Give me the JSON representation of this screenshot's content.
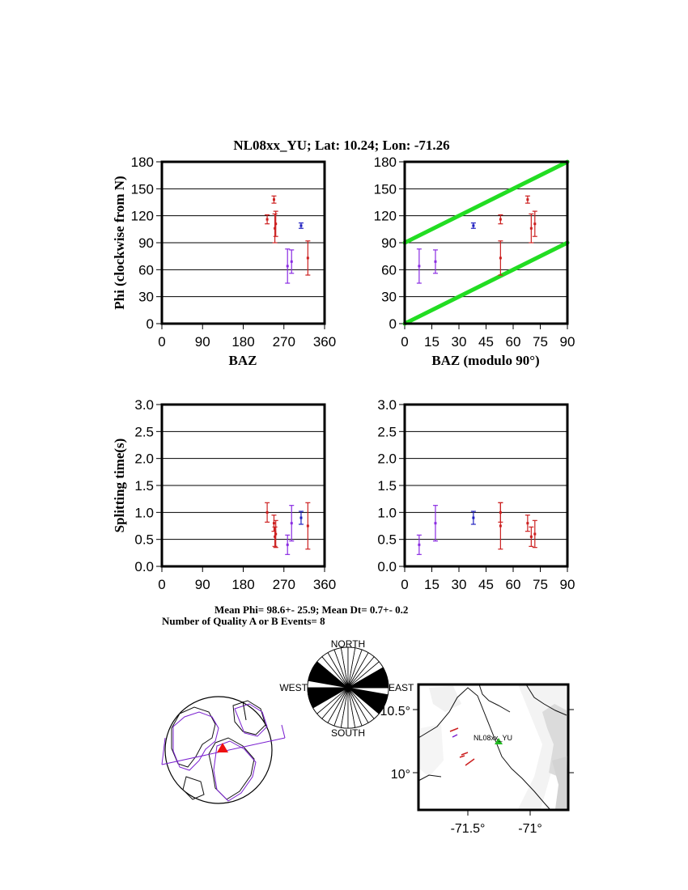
{
  "header": {
    "title": "NL08xx_YU; Lat:  10.24;  Lon:  -71.26"
  },
  "summary": {
    "line1": "Mean Phi= 98.6+- 25.9; Mean Dt=  0.7+-  0.2",
    "line2": "Number of Quality A or B Events=  8"
  },
  "chart_data": [
    {
      "id": "phi_vs_baz",
      "type": "scatter",
      "xlabel": "BAZ",
      "ylabel": "Phi (clockwise from N)",
      "xlim": [
        0,
        360
      ],
      "ylim": [
        0,
        180
      ],
      "xticks": [
        0,
        90,
        180,
        270,
        360
      ],
      "yticks": [
        0,
        30,
        60,
        90,
        120,
        150,
        180
      ],
      "grid": "horizontal",
      "points": [
        {
          "x": 233,
          "y": 116,
          "err": 5,
          "color": "#cc2020"
        },
        {
          "x": 248,
          "y": 138,
          "err": 4,
          "color": "#cc2020"
        },
        {
          "x": 250,
          "y": 106,
          "err": 16,
          "color": "#cc2020"
        },
        {
          "x": 252,
          "y": 111,
          "err": 14,
          "color": "#cc2020"
        },
        {
          "x": 278,
          "y": 64,
          "err": 19,
          "color": "#8a2be2"
        },
        {
          "x": 287,
          "y": 69,
          "err": 13,
          "color": "#8a2be2"
        },
        {
          "x": 308,
          "y": 109,
          "err": 3,
          "color": "#2020c0"
        },
        {
          "x": 323,
          "y": 73,
          "err": 19,
          "color": "#cc2020"
        }
      ]
    },
    {
      "id": "phi_vs_baz_mod90",
      "type": "scatter",
      "xlabel": "BAZ (modulo 90°)",
      "xlim": [
        0,
        90
      ],
      "ylim": [
        0,
        180
      ],
      "xticks": [
        0,
        15,
        30,
        45,
        60,
        75,
        90
      ],
      "yticks": [
        0,
        30,
        60,
        90,
        120,
        150,
        180
      ],
      "grid": "horizontal",
      "reference_lines": [
        {
          "x": [
            0,
            90
          ],
          "y": [
            0,
            90
          ],
          "color": "#22dd22"
        },
        {
          "x": [
            0,
            90
          ],
          "y": [
            90,
            180
          ],
          "color": "#22dd22"
        }
      ],
      "points": [
        {
          "x": 8,
          "y": 64,
          "err": 19,
          "color": "#8a2be2"
        },
        {
          "x": 17,
          "y": 69,
          "err": 13,
          "color": "#8a2be2"
        },
        {
          "x": 38,
          "y": 109,
          "err": 3,
          "color": "#2020c0"
        },
        {
          "x": 53,
          "y": 73,
          "err": 19,
          "color": "#cc2020"
        },
        {
          "x": 53,
          "y": 116,
          "err": 5,
          "color": "#cc2020"
        },
        {
          "x": 68,
          "y": 138,
          "err": 4,
          "color": "#cc2020"
        },
        {
          "x": 70,
          "y": 106,
          "err": 16,
          "color": "#cc2020"
        },
        {
          "x": 72,
          "y": 111,
          "err": 14,
          "color": "#cc2020"
        }
      ]
    },
    {
      "id": "dt_vs_baz",
      "type": "scatter",
      "ylabel": "Splitting time(s)",
      "xlim": [
        0,
        360
      ],
      "ylim": [
        0,
        3
      ],
      "xticks": [
        0,
        90,
        180,
        270,
        360
      ],
      "yticks": [
        0.0,
        0.5,
        1.0,
        1.5,
        2.0,
        2.5,
        3.0
      ],
      "grid": "horizontal",
      "points": [
        {
          "x": 233,
          "y": 1.0,
          "err": 0.18,
          "color": "#cc2020"
        },
        {
          "x": 248,
          "y": 0.8,
          "err": 0.15,
          "color": "#cc2020"
        },
        {
          "x": 250,
          "y": 0.55,
          "err": 0.18,
          "color": "#cc2020"
        },
        {
          "x": 252,
          "y": 0.6,
          "err": 0.25,
          "color": "#cc2020"
        },
        {
          "x": 278,
          "y": 0.4,
          "err": 0.18,
          "color": "#8a2be2"
        },
        {
          "x": 287,
          "y": 0.8,
          "err": 0.33,
          "color": "#8a2be2"
        },
        {
          "x": 308,
          "y": 0.9,
          "err": 0.12,
          "color": "#2020c0"
        },
        {
          "x": 323,
          "y": 0.75,
          "err": 0.43,
          "color": "#cc2020"
        }
      ]
    },
    {
      "id": "dt_vs_baz_mod90",
      "type": "scatter",
      "xlim": [
        0,
        90
      ],
      "ylim": [
        0,
        3
      ],
      "xticks": [
        0,
        15,
        30,
        45,
        60,
        75,
        90
      ],
      "yticks": [
        0.0,
        0.5,
        1.0,
        1.5,
        2.0,
        2.5,
        3.0
      ],
      "grid": "horizontal",
      "points": [
        {
          "x": 8,
          "y": 0.4,
          "err": 0.18,
          "color": "#8a2be2"
        },
        {
          "x": 17,
          "y": 0.8,
          "err": 0.33,
          "color": "#8a2be2"
        },
        {
          "x": 38,
          "y": 0.9,
          "err": 0.12,
          "color": "#2020c0"
        },
        {
          "x": 53,
          "y": 0.75,
          "err": 0.43,
          "color": "#cc2020"
        },
        {
          "x": 53,
          "y": 1.0,
          "err": 0.18,
          "color": "#cc2020"
        },
        {
          "x": 68,
          "y": 0.8,
          "err": 0.15,
          "color": "#cc2020"
        },
        {
          "x": 70,
          "y": 0.55,
          "err": 0.18,
          "color": "#cc2020"
        },
        {
          "x": 72,
          "y": 0.6,
          "err": 0.25,
          "color": "#cc2020"
        }
      ]
    }
  ],
  "rose": {
    "labels": {
      "north": "NORTH",
      "south": "SOUTH",
      "east": "EAST",
      "west": "WEST"
    },
    "filled_sectors_deg": [
      60,
      70,
      80,
      100,
      110,
      120,
      240,
      250,
      260,
      280,
      290,
      300
    ]
  },
  "station_map": {
    "station_label": "NL08xx_YU",
    "x_ticks": [
      "-71.5°",
      "-71°"
    ],
    "y_ticks": [
      "10.5°",
      "10°"
    ]
  },
  "colors": {
    "axes": "#000000",
    "reference_line": "#22dd22",
    "station_marker": "#22bb22",
    "location_marker": "#ee1111",
    "coastline": "#7a1fd0"
  }
}
